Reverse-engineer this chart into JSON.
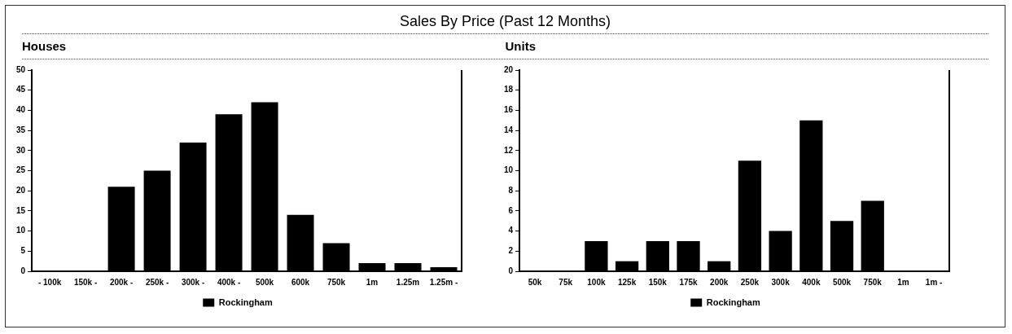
{
  "chart_data": [
    {
      "type": "bar",
      "title": "Sales By Price (Past 12 Months)",
      "subtitle": "Houses",
      "categories": [
        "- 100k",
        "150k -",
        "200k -",
        "250k -",
        "300k -",
        "400k -",
        "500k",
        "600k",
        "750k",
        "1m",
        "1.25m",
        "1.25m -"
      ],
      "series": [
        {
          "name": "Rockingham",
          "color": "#000000",
          "values": [
            0,
            0,
            21,
            25,
            32,
            39,
            42,
            14,
            7,
            2,
            2,
            1
          ]
        }
      ],
      "ylim": [
        0,
        50
      ],
      "yticks": [
        0,
        5,
        10,
        15,
        20,
        25,
        30,
        35,
        40,
        45,
        50
      ],
      "grid": false,
      "legend": "bottom"
    },
    {
      "type": "bar",
      "subtitle": "Units",
      "categories": [
        "50k",
        "75k",
        "100k",
        "125k",
        "150k",
        "175k",
        "200k",
        "250k",
        "300k",
        "400k",
        "500k",
        "750k",
        "1m",
        "1m -"
      ],
      "series": [
        {
          "name": "Rockingham",
          "color": "#000000",
          "values": [
            0,
            0,
            3,
            1,
            3,
            3,
            1,
            11,
            4,
            15,
            5,
            7,
            0,
            0
          ]
        }
      ],
      "ylim": [
        0,
        20
      ],
      "yticks": [
        0,
        2,
        4,
        6,
        8,
        10,
        12,
        14,
        16,
        18,
        20
      ],
      "grid": false,
      "legend": "bottom"
    }
  ]
}
